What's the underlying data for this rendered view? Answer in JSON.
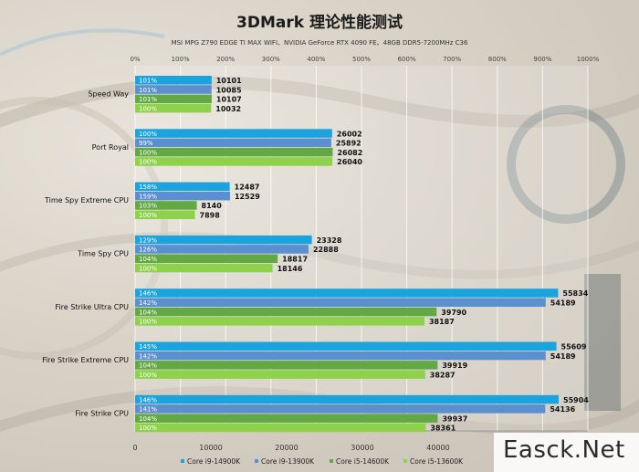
{
  "chart_data": {
    "type": "bar",
    "orientation": "horizontal",
    "title": "3DMark 理论性能测试",
    "subtitle": "MSI MPG Z790 EDGE TI MAX WIFI、NVIDIA GeForce RTX 4090 FE、48GB DDR5-7200MHz  C36",
    "categories": [
      "Speed Way",
      "Port Royal",
      "Time Spy Extreme CPU",
      "Time Spy CPU",
      "Fire Strike Ultra CPU",
      "Fire Strike Extreme CPU",
      "Fire Strike CPU"
    ],
    "series": [
      {
        "name": "Core i9-14900K",
        "color": "#1aa3dc",
        "values": [
          10101,
          26002,
          12487,
          23328,
          55834,
          55609,
          55904
        ],
        "pct_labels": [
          "101%",
          "100%",
          "158%",
          "129%",
          "146%",
          "145%",
          "146%"
        ]
      },
      {
        "name": "Core i9-13900K",
        "color": "#5a8fd0",
        "values": [
          10085,
          25892,
          12529,
          22888,
          54189,
          54189,
          54136
        ],
        "pct_labels": [
          "101%",
          "99%",
          "159%",
          "126%",
          "142%",
          "142%",
          "141%"
        ]
      },
      {
        "name": "Core i5-14600K",
        "color": "#62a844",
        "values": [
          10107,
          26082,
          8140,
          18817,
          39790,
          39919,
          39937
        ],
        "pct_labels": [
          "101%",
          "100%",
          "103%",
          "104%",
          "104%",
          "104%",
          "104%"
        ]
      },
      {
        "name": "Core i5-13600K",
        "color": "#8ed24c",
        "values": [
          10032,
          26040,
          7898,
          18146,
          38187,
          38287,
          38361
        ],
        "pct_labels": [
          "100%",
          "100%",
          "100%",
          "100%",
          "100%",
          "100%",
          "100%"
        ]
      }
    ],
    "x_top_ticks": [
      "0%",
      "100%",
      "200%",
      "300%",
      "400%",
      "500%",
      "600%",
      "700%",
      "800%",
      "900%",
      "1000%"
    ],
    "x_bottom_ticks": [
      0,
      10000,
      20000,
      30000,
      40000
    ],
    "xlim": [
      0,
      60000
    ],
    "grid": true,
    "legend_position": "bottom"
  },
  "watermark": "Easck.Net"
}
